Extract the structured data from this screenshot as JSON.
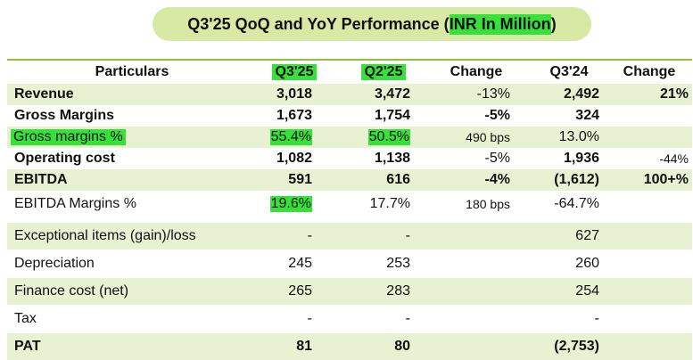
{
  "title": {
    "prefix": "Q3'25 QoQ and YoY Performance (",
    "highlight": "INR In Million",
    "suffix": ")"
  },
  "colors": {
    "title_pill": "#d8e9a6",
    "band": "#e8f2d3",
    "highlight": "#36e23a",
    "rule": "#8fbf3d"
  },
  "header": [
    "Particulars",
    "Q3'25",
    "Q2'25",
    "Change",
    "Q3'24",
    "Change"
  ],
  "rows": [
    {
      "label": "Revenue",
      "q325": "3,018",
      "q225": "3,472",
      "change": "-13%",
      "q324": "2,492",
      "yoy": "21%"
    },
    {
      "label": "Gross Margins",
      "q325": "1,673",
      "q225": "1,754",
      "change": "-5%",
      "q324": "324",
      "yoy": ""
    },
    {
      "label": "Gross margins %",
      "q325": "55.4%",
      "q225": "50.5%",
      "change": "490 bps",
      "q324": "13.0%",
      "yoy": ""
    },
    {
      "label": "Operating cost",
      "q325": "1,082",
      "q225": "1,138",
      "change": "-5%",
      "q324": "1,936",
      "yoy": "-44%"
    },
    {
      "label": "EBITDA",
      "q325": "591",
      "q225": "616",
      "change": "-4%",
      "q324": "(1,612)",
      "yoy": "100+%"
    },
    {
      "label": "EBITDA Margins %",
      "q325": "19.6%",
      "q225": "17.7%",
      "change": "180 bps",
      "q324": "-64.7%",
      "yoy": ""
    },
    {
      "label": "Exceptional items (gain)/loss",
      "q325": "-",
      "q225": "-",
      "change": "",
      "q324": "627",
      "yoy": ""
    },
    {
      "label": "Depreciation",
      "q325": "245",
      "q225": "253",
      "change": "",
      "q324": "260",
      "yoy": ""
    },
    {
      "label": "Finance cost (net)",
      "q325": "265",
      "q225": "283",
      "change": "",
      "q324": "254",
      "yoy": ""
    },
    {
      "label": "Tax",
      "q325": "-",
      "q225": "-",
      "change": "",
      "q324": "-",
      "yoy": ""
    },
    {
      "label": "PAT",
      "q325": "81",
      "q225": "80",
      "change": "",
      "q324": "(2,753)",
      "yoy": ""
    }
  ]
}
